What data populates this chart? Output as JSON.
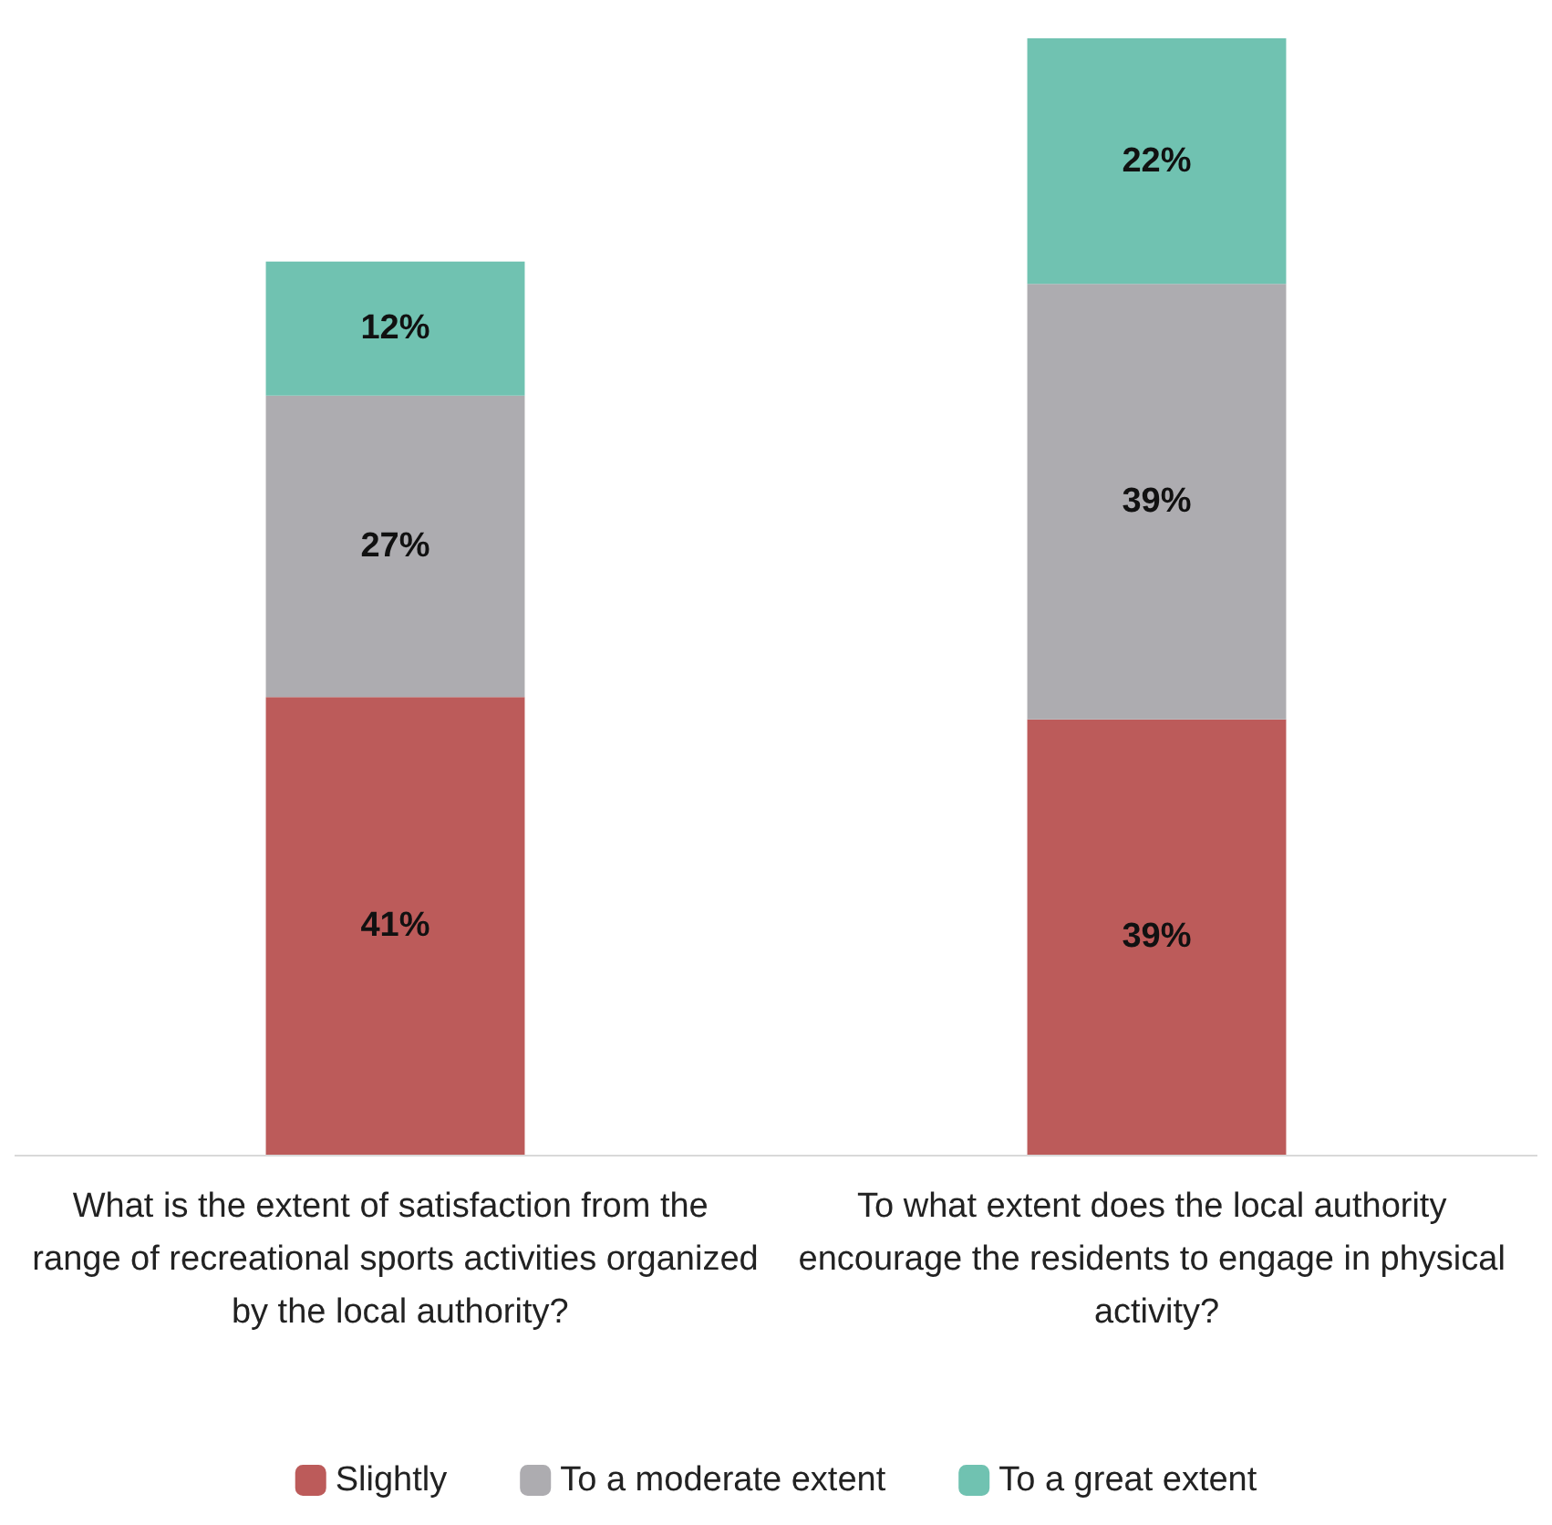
{
  "chart_data": {
    "type": "bar",
    "stacked": true,
    "categories": [
      "What is the extent of satisfaction from the range of recreational sports activities organized by the local authority?",
      "To what extent does the local authority encourage the residents to engage in physical activity?"
    ],
    "series": [
      {
        "name": "Slightly",
        "color": "#bc5b5a",
        "values": [
          41,
          39
        ],
        "value_labels": [
          "41%",
          "39%"
        ]
      },
      {
        "name": "To a moderate extent",
        "color": "#adacb0",
        "values": [
          27,
          39
        ],
        "value_labels": [
          "27%",
          "39%"
        ]
      },
      {
        "name": "To a great extent",
        "color": "#70c2b1",
        "values": [
          12,
          22
        ],
        "value_labels": [
          "12%",
          "22%"
        ]
      }
    ],
    "legend": "bottom",
    "grid": false
  }
}
